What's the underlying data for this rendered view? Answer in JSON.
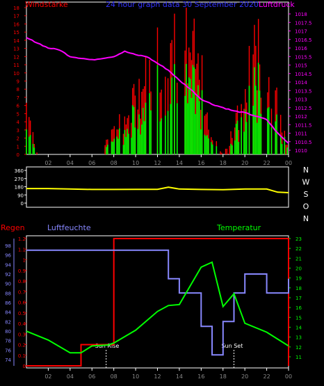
{
  "header": {
    "left_label": "Windstärke",
    "center_label": "24 hour graph data  30 September 2020",
    "right_label": "Luftdruck"
  },
  "colors": {
    "bg": "#000000",
    "wind_speed": "#ff0000",
    "wind_gust": "#00ff00",
    "pressure": "#ff00ff",
    "direction": "#ffff00",
    "humidity": "#8888ff",
    "temperature": "#00ff00",
    "rain": "#ff0000",
    "axis_grey": "#888888",
    "grid": "#444444",
    "white": "#ffffff"
  },
  "x_ticks": [
    "02",
    "04",
    "06",
    "08",
    "10",
    "12",
    "14",
    "16",
    "18",
    "20",
    "22",
    "00"
  ],
  "wind_panel": {
    "left_ticks": [
      "0",
      "1",
      "2",
      "3",
      "4",
      "5",
      "6",
      "7",
      "8",
      "9",
      "10",
      "11",
      "12",
      "13",
      "14",
      "15",
      "16",
      "17",
      "18"
    ],
    "right_ticks": [
      "1010",
      "1010.5",
      "1011",
      "1011.5",
      "1012",
      "1012.5",
      "1013",
      "1013.5",
      "1014",
      "1014.5",
      "1015",
      "1015.5",
      "1016",
      "1016.5",
      "1017",
      "1017.5",
      "1018"
    ],
    "wind_ylim": [
      0,
      18
    ],
    "pressure_ylim": [
      1010,
      1018
    ]
  },
  "direction_panel": {
    "left_ticks": [
      "0",
      "90",
      "180",
      "270",
      "360"
    ],
    "compass_labels": [
      "N",
      "W",
      "S",
      "O",
      "N"
    ],
    "ylim": [
      0,
      360
    ]
  },
  "weather_panel": {
    "rain_label": "Regen",
    "humidity_label": "Luftfeuchte",
    "temperature_label": "Temperatur",
    "rain_ticks": [
      "0",
      "0.1",
      "0.2",
      "0.3",
      "0.4",
      "0.5",
      "0.6",
      "0.7",
      "0.8",
      "0.9",
      "1",
      "1.1",
      "1.2"
    ],
    "humidity_ticks": [
      "74",
      "76",
      "78",
      "80",
      "82",
      "84",
      "86",
      "88",
      "90",
      "92",
      "94",
      "96",
      "98"
    ],
    "temperature_ticks": [
      "11",
      "12",
      "13",
      "14",
      "15",
      "16",
      "17",
      "18",
      "19",
      "20",
      "21",
      "22",
      "23"
    ],
    "rain_ylim": [
      0,
      1.2
    ],
    "humidity_ylim": [
      74,
      98
    ],
    "temperature_ylim": [
      11,
      23
    ],
    "sun_rise_label": "Sun Rise",
    "sun_set_label": "Sun Set"
  },
  "chart_data": [
    {
      "type": "bar",
      "title": "24 hour graph data  30 September 2020",
      "x": [
        0,
        1,
        2,
        3,
        4,
        5,
        6,
        7,
        8,
        9,
        10,
        11,
        12,
        13,
        14,
        15,
        16,
        17,
        18,
        19,
        20,
        21,
        22,
        23,
        24
      ],
      "series": [
        {
          "name": "Windstärke",
          "values": [
            6,
            0,
            0,
            0,
            0,
            0,
            0,
            0,
            4,
            4,
            7,
            9,
            12,
            15,
            14,
            13,
            9,
            2,
            0,
            3,
            7,
            13,
            9,
            7,
            0
          ]
        },
        {
          "name": "Luftdruck",
          "values": [
            1016.6,
            1016.3,
            1016.0,
            1015.9,
            1015.5,
            1015.4,
            1015.3,
            1015.4,
            1015.5,
            1015.8,
            1015.6,
            1015.5,
            1015.1,
            1014.7,
            1014.1,
            1013.6,
            1013.0,
            1012.7,
            1012.5,
            1012.3,
            1012.2,
            1012.0,
            1011.8,
            1011.0,
            1010.4
          ]
        }
      ],
      "xlabel": "",
      "ylabel": ""
    },
    {
      "type": "line",
      "x": [
        0,
        2,
        4,
        6,
        8,
        10,
        12,
        13,
        14,
        16,
        18,
        20,
        22,
        23,
        24
      ],
      "series": [
        {
          "name": "",
          "values": [
            160,
            160,
            155,
            150,
            150,
            152,
            152,
            175,
            155,
            150,
            148,
            155,
            155,
            120,
            115
          ]
        }
      ],
      "ylim": [
        0,
        360
      ]
    },
    {
      "type": "line",
      "x": [
        0,
        2,
        4,
        5,
        6,
        7.5,
        8,
        10,
        12,
        13,
        14,
        16,
        17,
        18,
        19,
        20,
        22,
        24
      ],
      "series": [
        {
          "name": "Regen",
          "values": [
            0,
            0,
            0,
            0.2,
            0.2,
            0.2,
            1.2,
            1.2,
            1.2,
            1.2,
            1.2,
            1.2,
            1.2,
            1.2,
            1.2,
            1.2,
            1.2,
            0
          ]
        },
        {
          "name": "Luftfeuchte",
          "values": [
            97,
            97,
            97,
            97,
            97,
            97,
            97,
            97,
            97,
            91,
            88,
            81,
            75,
            82,
            88,
            92,
            88,
            91
          ]
        },
        {
          "name": "Temperatur",
          "values": [
            13.6,
            12.7,
            11.4,
            11.4,
            12.1,
            12.2,
            12.4,
            13.7,
            15.6,
            16.2,
            16.3,
            20.1,
            20.6,
            16.1,
            17.4,
            14.4,
            13.5,
            12.1
          ]
        }
      ]
    }
  ]
}
